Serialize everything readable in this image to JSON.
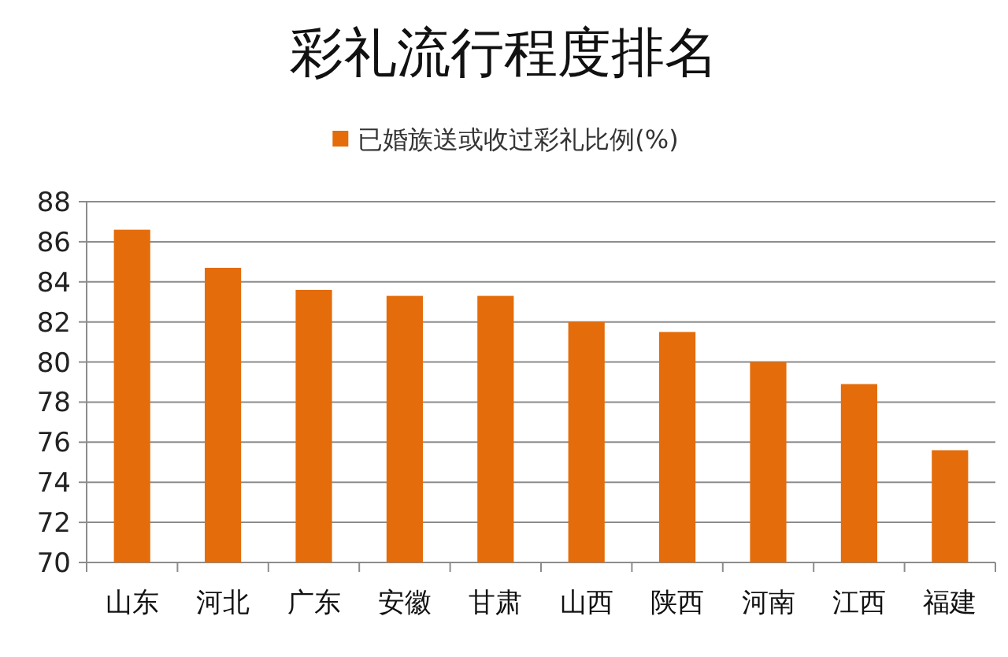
{
  "chart_data": {
    "type": "bar",
    "title": "彩礼流行程度排名",
    "categories": [
      "山东",
      "河北",
      "广东",
      "安徽",
      "甘肃",
      "山西",
      "陕西",
      "河南",
      "江西",
      "福建"
    ],
    "series": [
      {
        "name": "已婚族送或收过彩礼比例(%)",
        "color": "#e46c0a",
        "values": [
          86.6,
          84.7,
          83.6,
          83.3,
          83.3,
          82.0,
          81.5,
          80.0,
          78.9,
          75.6
        ]
      }
    ],
    "ylim": [
      70,
      88
    ],
    "yticks": [
      70,
      72,
      74,
      76,
      78,
      80,
      82,
      84,
      86,
      88
    ],
    "grid": "y",
    "legend": "top"
  }
}
